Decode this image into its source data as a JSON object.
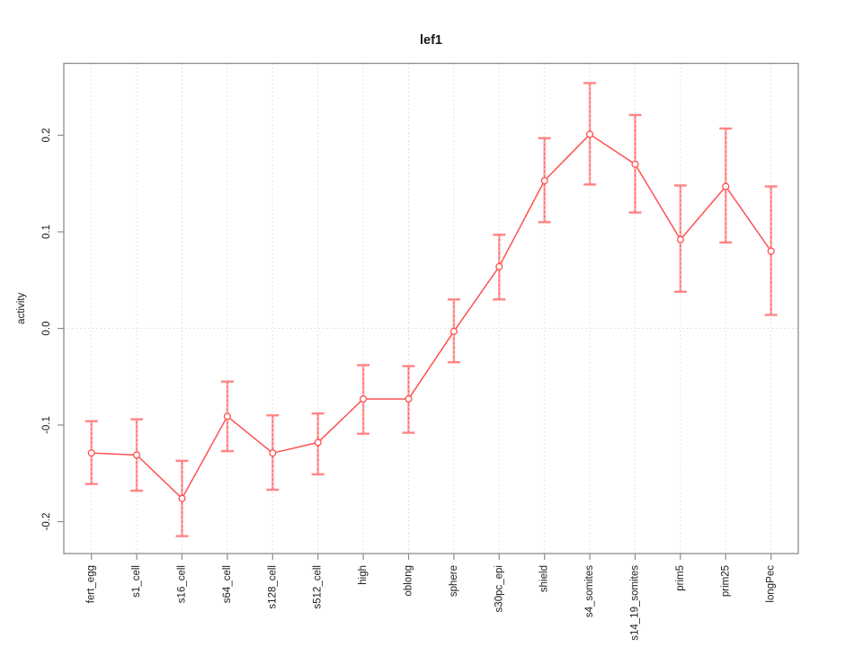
{
  "chart_data": {
    "type": "line",
    "title": "lef1",
    "xlabel": "",
    "ylabel": "activity",
    "categories": [
      "fert_egg",
      "s1_cell",
      "s16_cell",
      "s64_cell",
      "s128_cell",
      "s512_cell",
      "high",
      "oblong",
      "sphere",
      "s30pc_epi",
      "shield",
      "s4_somites",
      "s14_19_somites",
      "prim5",
      "prim25",
      "longPec"
    ],
    "series": [
      {
        "name": "lef1",
        "values": [
          -0.129,
          -0.131,
          -0.176,
          -0.091,
          -0.129,
          -0.118,
          -0.073,
          -0.073,
          -0.003,
          0.064,
          0.153,
          0.201,
          0.17,
          0.092,
          0.147,
          0.08
        ],
        "error_low": [
          -0.161,
          -0.168,
          -0.215,
          -0.127,
          -0.167,
          -0.151,
          -0.109,
          -0.108,
          -0.035,
          0.03,
          0.11,
          0.149,
          0.12,
          0.038,
          0.089,
          0.014
        ],
        "error_high": [
          -0.096,
          -0.094,
          -0.137,
          -0.055,
          -0.09,
          -0.088,
          -0.038,
          -0.039,
          0.03,
          0.097,
          0.197,
          0.254,
          0.221,
          0.148,
          0.207,
          0.147
        ]
      }
    ],
    "yticks": [
      {
        "value": -0.2,
        "label": "-0.2"
      },
      {
        "value": -0.1,
        "label": "-0.1"
      },
      {
        "value": 0.0,
        "label": "0.0"
      },
      {
        "value": 0.1,
        "label": "0.1"
      },
      {
        "value": 0.2,
        "label": "0.2"
      }
    ],
    "ylim": [
      -0.232,
      0.275
    ],
    "grid": {
      "vertical": "dotted line at every category",
      "horizontal": "dotted line at y = 0 only"
    },
    "legend": "none",
    "marker": "open circle",
    "colors": {
      "line": "#ff5050",
      "marker_stroke": "#ff5050",
      "marker_fill": "#ffffff",
      "errorbar_body": "#ffa8a8",
      "errorbar_cap": "#ff8585",
      "errorbar_dash": "#ff5050",
      "gridline": "#dadada",
      "box": "#8c8c8c",
      "tick": "#8c8c8c",
      "text": "#1a1a1a",
      "background": "#ffffff"
    }
  }
}
